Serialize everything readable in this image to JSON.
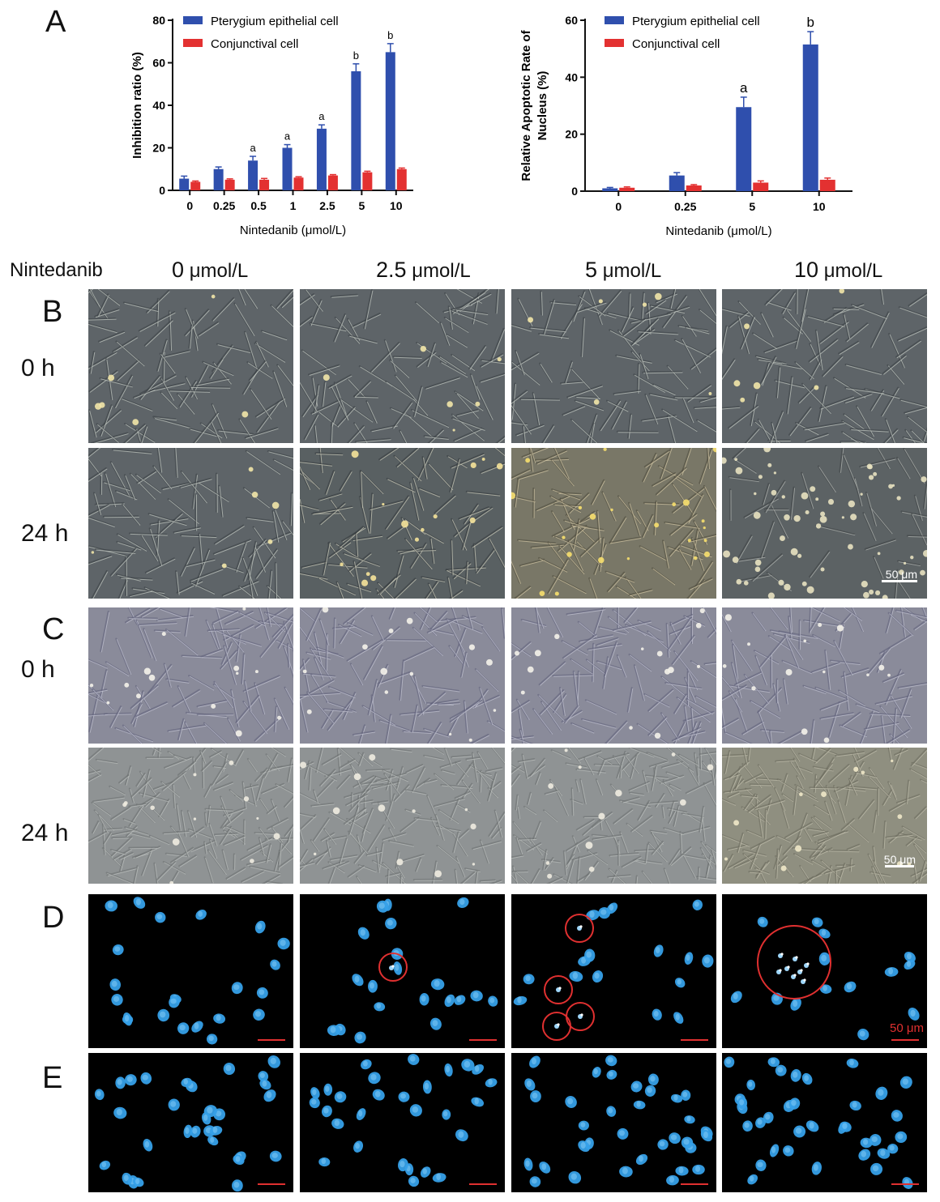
{
  "panel_letters": [
    "A",
    "B",
    "C",
    "D",
    "E"
  ],
  "header": {
    "row_title": "Nintedanib",
    "columns": [
      {
        "num": "0",
        "unit": "μmol/L"
      },
      {
        "num": "2.5",
        "unit": "μmol/L"
      },
      {
        "num": "5",
        "unit": "μmol/L"
      },
      {
        "num": "10",
        "unit": "μmol/L"
      }
    ]
  },
  "time_labels": {
    "t0": "0 h",
    "t24": "24 h"
  },
  "scale_bar": "50 μm",
  "colors": {
    "pterygium": "#2f4fad",
    "conjunctival": "#e33131",
    "circle": "#e03030",
    "micro_b": "#5f6468",
    "micro_c": "#8a8c99",
    "nuclei": "#36a0e8"
  },
  "chart_data": [
    {
      "type": "bar",
      "categories": [
        "0",
        "0.25",
        "0.5",
        "1",
        "2.5",
        "5",
        "10"
      ],
      "series": [
        {
          "name": "Pterygium epithelial cell",
          "values": [
            5.5,
            10,
            14,
            20,
            29,
            56,
            65
          ],
          "errors": [
            1.2,
            1,
            2,
            1.5,
            1.8,
            3.5,
            4
          ]
        },
        {
          "name": "Conjunctival cell",
          "values": [
            4,
            5,
            5,
            6,
            7,
            8.5,
            10
          ],
          "errors": [
            0.4,
            0.4,
            0.6,
            0.4,
            0.4,
            0.5,
            0.5
          ]
        }
      ],
      "annotations": [
        "",
        "",
        "a",
        "a",
        "a",
        "b",
        "b"
      ],
      "xlabel": "Nintedanib (μmol/L)",
      "ylabel": "Inhibition ratio (%)",
      "ylim": [
        0,
        80
      ],
      "yticks": [
        0,
        20,
        40,
        60,
        80
      ],
      "legend": "top-left"
    },
    {
      "type": "bar",
      "categories": [
        "0",
        "0.25",
        "5",
        "10"
      ],
      "series": [
        {
          "name": "Pterygium epithelial cell",
          "values": [
            1,
            5.5,
            29.5,
            51.5
          ],
          "errors": [
            0.3,
            1,
            3.5,
            4.5
          ]
        },
        {
          "name": "Conjunctival cell",
          "values": [
            1.2,
            2,
            3,
            4
          ],
          "errors": [
            0.3,
            0.3,
            0.6,
            0.6
          ]
        }
      ],
      "annotations": [
        "",
        "",
        "a",
        "b"
      ],
      "xlabel": "Nintedanib (μmol/L)",
      "ylabel_lines": [
        "Relative Apoptotic Rate of",
        "Nucleus (%)"
      ],
      "ylim": [
        0,
        60
      ],
      "yticks": [
        0,
        20,
        40,
        60
      ],
      "legend": "top-left"
    }
  ]
}
